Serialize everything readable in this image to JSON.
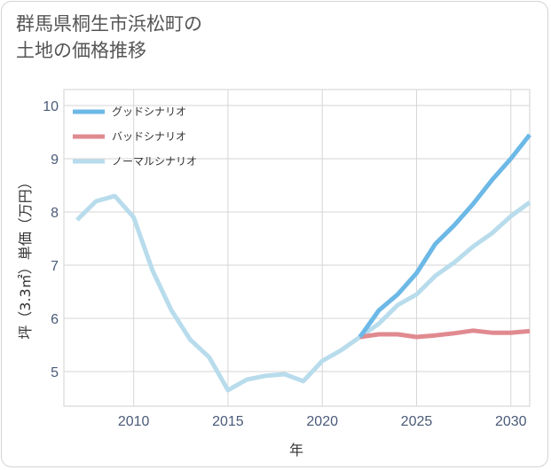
{
  "title": {
    "line1": "群馬県桐生市浜松町の",
    "line2": "土地の価格推移"
  },
  "chart_data": {
    "type": "line",
    "xlabel": "年",
    "ylabel": "坪（3.3㎡）単価（万円）",
    "xlim": [
      2006.3,
      2031
    ],
    "ylim": [
      4.35,
      10.3
    ],
    "xticks": [
      2010,
      2015,
      2020,
      2025,
      2030
    ],
    "yticks": [
      5,
      6,
      7,
      8,
      9,
      10
    ],
    "grid": true,
    "legend_position": "top-left",
    "series": [
      {
        "name": "グッドシナリオ",
        "color": "#6cb8e6",
        "x": [
          2022,
          2023,
          2024,
          2025,
          2026,
          2027,
          2028,
          2029,
          2030,
          2031
        ],
        "y": [
          5.65,
          6.15,
          6.45,
          6.85,
          7.4,
          7.75,
          8.15,
          8.6,
          9.0,
          9.45
        ]
      },
      {
        "name": "バッドシナリオ",
        "color": "#e08a90",
        "x": [
          2022,
          2023,
          2024,
          2025,
          2026,
          2027,
          2028,
          2029,
          2030,
          2031
        ],
        "y": [
          5.65,
          5.7,
          5.7,
          5.65,
          5.68,
          5.72,
          5.77,
          5.73,
          5.73,
          5.76
        ]
      },
      {
        "name": "ノーマルシナリオ",
        "color": "#b8dcec",
        "x": [
          2007,
          2008,
          2009,
          2010,
          2011,
          2012,
          2013,
          2014,
          2015,
          2016,
          2017,
          2018,
          2019,
          2020,
          2021,
          2022,
          2023,
          2024,
          2025,
          2026,
          2027,
          2028,
          2029,
          2030,
          2031
        ],
        "y": [
          7.85,
          8.2,
          8.3,
          7.9,
          6.9,
          6.15,
          5.6,
          5.27,
          4.65,
          4.85,
          4.92,
          4.95,
          4.82,
          5.2,
          5.4,
          5.65,
          5.9,
          6.25,
          6.45,
          6.8,
          7.05,
          7.35,
          7.6,
          7.92,
          8.18
        ]
      }
    ]
  }
}
